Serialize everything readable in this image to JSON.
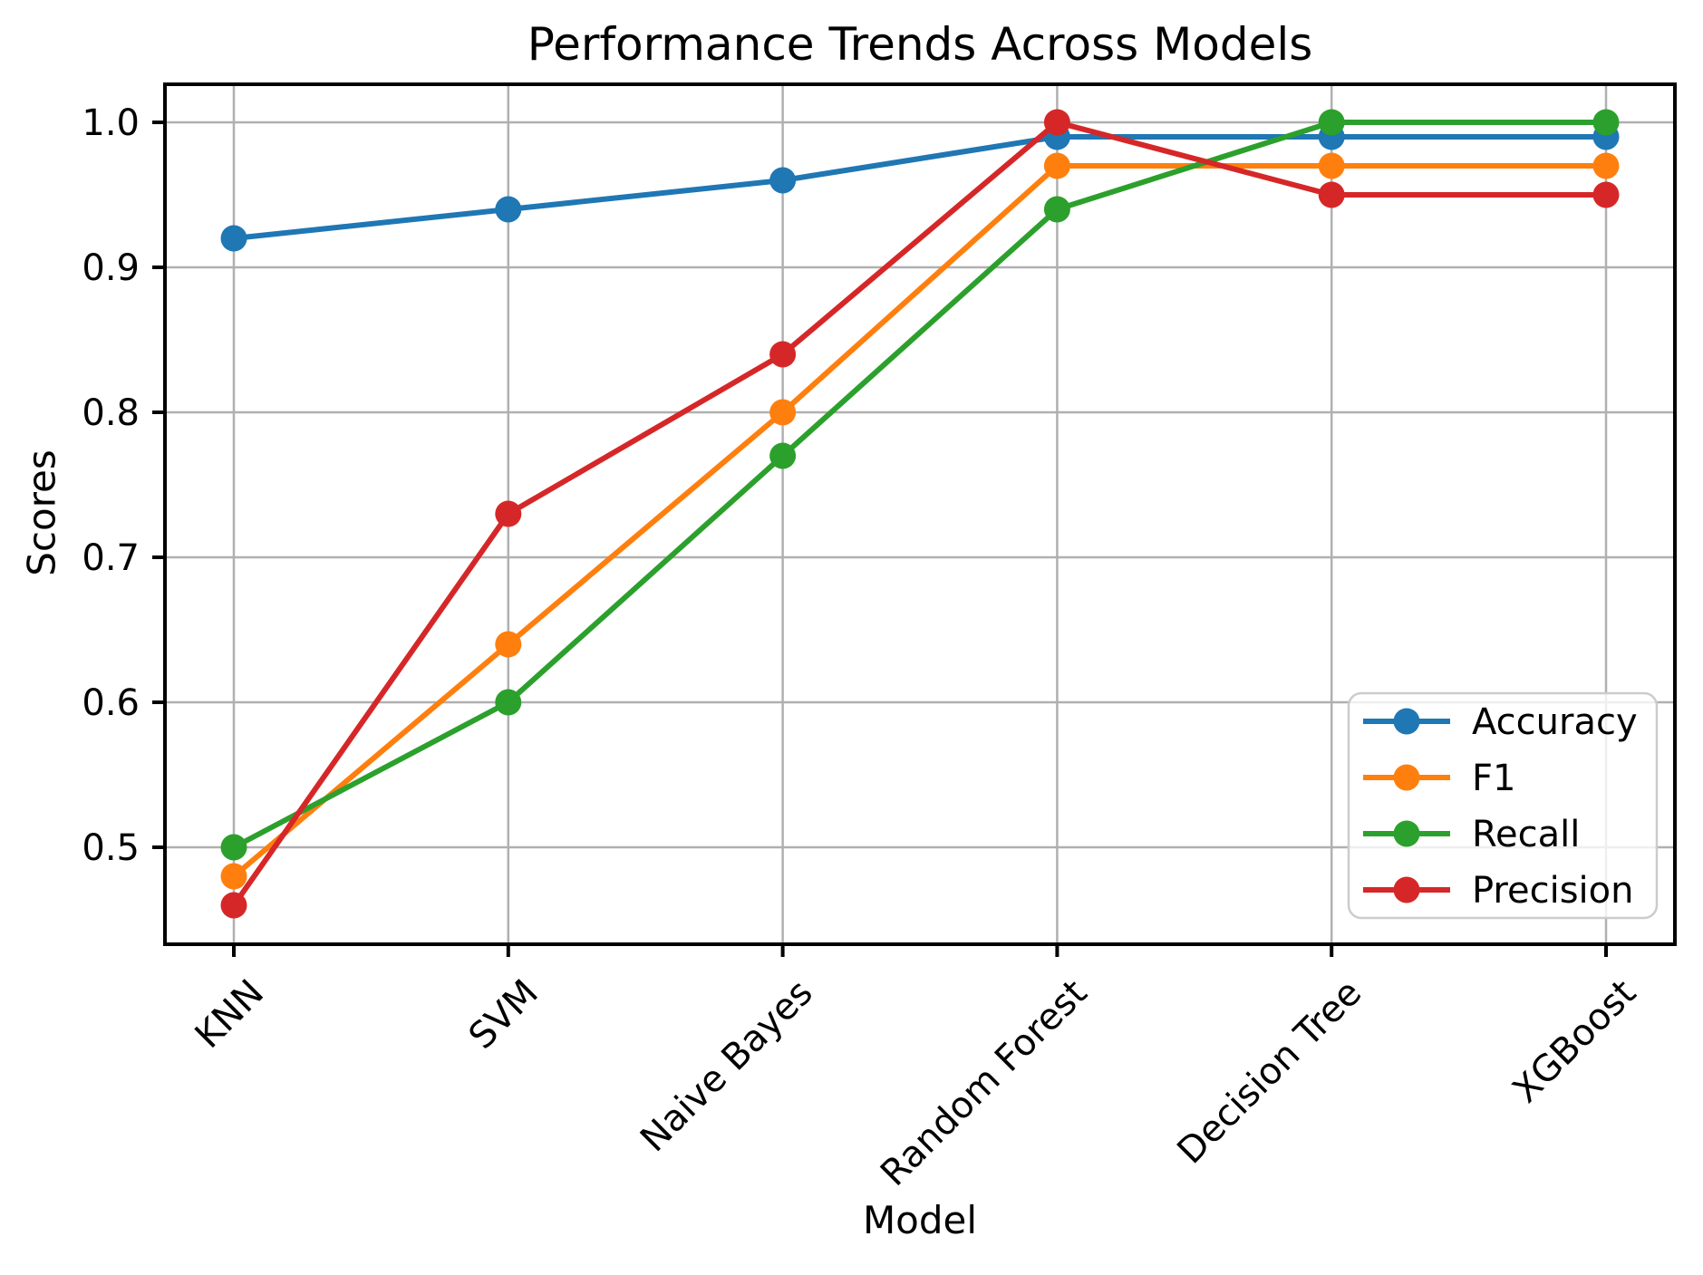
{
  "chart_data": {
    "type": "line",
    "title": "Performance Trends Across Models",
    "xlabel": "Model",
    "ylabel": "Scores",
    "categories": [
      "KNN",
      "SVM",
      "Naive Bayes",
      "Random Forest",
      "Decision Tree",
      "XGBoost"
    ],
    "series": [
      {
        "name": "Accuracy",
        "color": "#1f77b4",
        "values": [
          0.92,
          0.94,
          0.96,
          0.99,
          0.99,
          0.99
        ]
      },
      {
        "name": "F1",
        "color": "#ff7f0e",
        "values": [
          0.48,
          0.64,
          0.8,
          0.97,
          0.97,
          0.97
        ]
      },
      {
        "name": "Recall",
        "color": "#2ca02c",
        "values": [
          0.5,
          0.6,
          0.77,
          0.94,
          1.0,
          1.0
        ]
      },
      {
        "name": "Precision",
        "color": "#d62728",
        "values": [
          0.46,
          0.73,
          0.84,
          1.0,
          0.95,
          0.95
        ]
      }
    ],
    "yticks": [
      0.5,
      0.6,
      0.7,
      0.8,
      0.9,
      1.0
    ],
    "ylim": [
      0.433,
      1.026
    ],
    "grid": true,
    "x_tick_rotation": 45,
    "legend_position": "lower right",
    "legend_entries": [
      "Accuracy",
      "F1",
      "Recall",
      "Precision"
    ]
  },
  "colors": {
    "background": "#ffffff",
    "grid": "#b0b0b0",
    "spine": "#000000",
    "tick_label": "#000000",
    "legend_border": "#cccccc",
    "legend_fill": "rgba(255,255,255,0.8)"
  }
}
